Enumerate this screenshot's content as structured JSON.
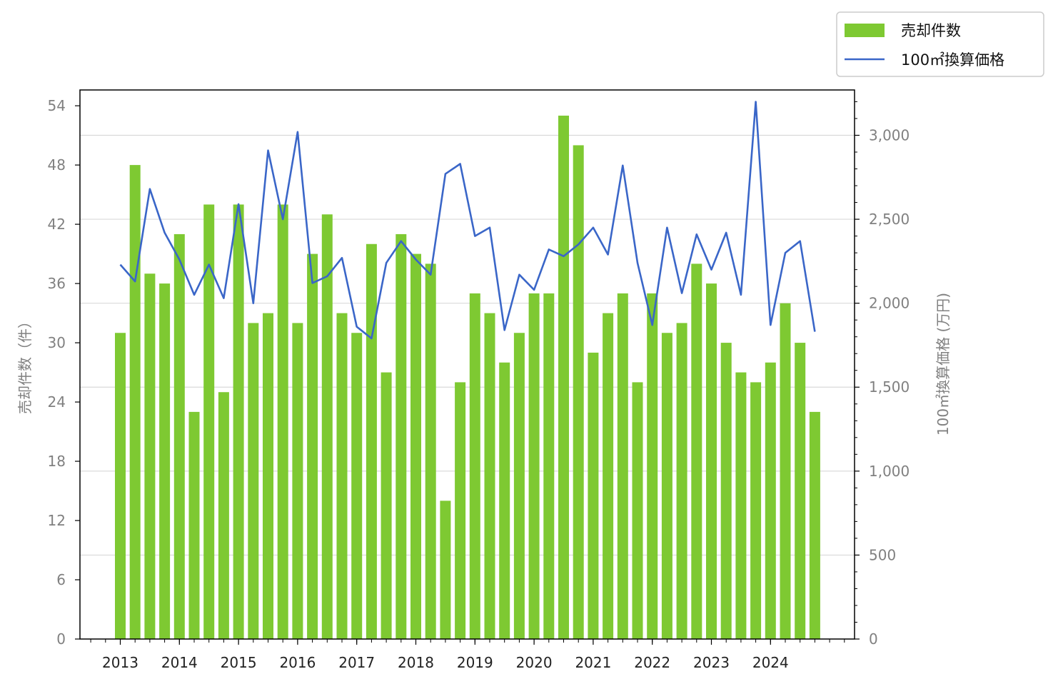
{
  "chart_data": {
    "type": "bar+line",
    "x_tick_labels": [
      "2013",
      "2014",
      "2015",
      "2016",
      "2017",
      "2018",
      "2019",
      "2020",
      "2021",
      "2022",
      "2023",
      "2024"
    ],
    "left_axis": {
      "label": "売却件数（件）",
      "ticks": [
        "0",
        "6",
        "12",
        "18",
        "24",
        "30",
        "36",
        "42",
        "48",
        "54"
      ],
      "ylim": [
        0,
        55.6
      ]
    },
    "right_axis": {
      "label": "100㎡換算価格 (万円)",
      "ticks": [
        "0",
        "500",
        "1,000",
        "1,500",
        "2,000",
        "2,500",
        "3,000"
      ],
      "ylim": [
        0,
        3270
      ]
    },
    "legend": {
      "placement": "top-right, outside plot",
      "bar_label": "売却件数",
      "line_label": "100㎡換算価格"
    },
    "grid": "horizontal, right axis",
    "colors": {
      "bar": "#7ec932",
      "line": "#3a66c8",
      "grid": "#d9d9d9"
    },
    "quarters": [
      "2013Q1",
      "2013Q2",
      "2013Q3",
      "2013Q4",
      "2014Q1",
      "2014Q2",
      "2014Q3",
      "2014Q4",
      "2015Q1",
      "2015Q2",
      "2015Q3",
      "2015Q4",
      "2016Q1",
      "2016Q2",
      "2016Q3",
      "2016Q4",
      "2017Q1",
      "2017Q2",
      "2017Q3",
      "2017Q4",
      "2018Q1",
      "2018Q2",
      "2018Q3",
      "2018Q4",
      "2019Q1",
      "2019Q2",
      "2019Q3",
      "2019Q4",
      "2020Q1",
      "2020Q2",
      "2020Q3",
      "2020Q4",
      "2021Q1",
      "2021Q2",
      "2021Q3",
      "2021Q4",
      "2022Q1",
      "2022Q2",
      "2022Q3",
      "2022Q4",
      "2023Q1",
      "2023Q2",
      "2023Q3",
      "2023Q4",
      "2024Q1",
      "2024Q2",
      "2024Q3",
      "2024Q4"
    ],
    "series": [
      {
        "name": "売却件数",
        "type": "bar",
        "axis": "left",
        "values": [
          31,
          48,
          37,
          36,
          41,
          23,
          44,
          25,
          44,
          32,
          33,
          44,
          32,
          39,
          43,
          33,
          31,
          40,
          27,
          41,
          39,
          38,
          14,
          26,
          35,
          33,
          28,
          31,
          35,
          35,
          53,
          50,
          29,
          33,
          35,
          26,
          35,
          31,
          32,
          38,
          36,
          30,
          27,
          26,
          28,
          34,
          30,
          23
        ]
      },
      {
        "name": "100㎡換算価格",
        "type": "line",
        "axis": "right",
        "values": [
          2230,
          2130,
          2680,
          2420,
          2260,
          2050,
          2230,
          2030,
          2590,
          2000,
          2910,
          2500,
          3020,
          2120,
          2160,
          2270,
          1860,
          1790,
          2240,
          2370,
          2260,
          2170,
          2770,
          2830,
          2400,
          2450,
          1840,
          2170,
          2080,
          2320,
          2280,
          2350,
          2450,
          2290,
          2820,
          2240,
          1870,
          2450,
          2060,
          2410,
          2200,
          2420,
          2050,
          3200,
          1870,
          2300,
          2370,
          1830
        ]
      }
    ]
  }
}
